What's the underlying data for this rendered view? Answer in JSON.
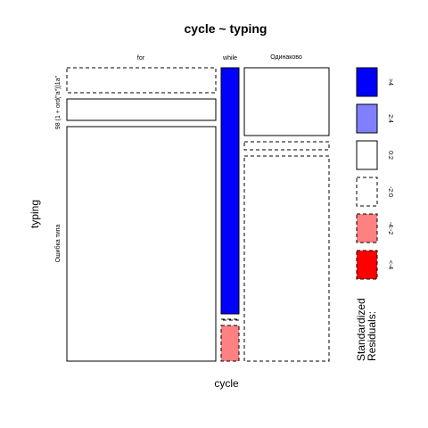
{
  "chart_data": {
    "type": "mosaic",
    "title": "cycle ~ typing",
    "xlabel": "cycle",
    "ylabel": "typing",
    "x_categories": [
      "for",
      "while",
      "Одинаково"
    ],
    "y_categories": [
      "98 (1 + ord(\"a\"))1a\"",
      "Ошибка типа"
    ],
    "cells": [
      {
        "x": "for",
        "residual_bin": "-2:0",
        "color": "#ffffff",
        "border": "dashed"
      },
      {
        "x": "for",
        "residual_bin": "0:2",
        "color": "#ffffff",
        "border": "solid"
      },
      {
        "x": "for",
        "y": "Ошибка типа",
        "residual_bin": "0:2",
        "color": "#ffffff",
        "border": "solid"
      },
      {
        "x": "while",
        "residual_bin": ">4",
        "color": "#0000ff",
        "border": "solid"
      },
      {
        "x": "while",
        "residual_bin": "-2:0",
        "color": "#ffffff",
        "border": "dashed"
      },
      {
        "x": "while",
        "residual_bin": "-4:-2",
        "color": "#ff8080",
        "border": "dashed"
      },
      {
        "x": "Одинаково",
        "residual_bin": "0:2",
        "color": "#ffffff",
        "border": "solid"
      },
      {
        "x": "Одинаково",
        "residual_bin": "-2:0",
        "color": "#ffffff",
        "border": "dashed"
      },
      {
        "x": "Одинаково",
        "residual_bin": "-2:0",
        "color": "#ffffff",
        "border": "dashed"
      }
    ],
    "legend": {
      "title_line1": "Standardized",
      "title_line2": "Residuals:",
      "placement": "right",
      "entries": [
        {
          "label": ">4",
          "color": "#0000ff",
          "border": "solid"
        },
        {
          "label": "2:4",
          "color": "#8080ff",
          "border": "solid"
        },
        {
          "label": "0:2",
          "color": "#ffffff",
          "border": "solid"
        },
        {
          "label": "-2:0",
          "color": "#ffffff",
          "border": "dashed"
        },
        {
          "label": "-4:-2",
          "color": "#ff8080",
          "border": "dashed"
        },
        {
          "label": "<-4",
          "color": "#ff0000",
          "border": "dashed"
        }
      ]
    }
  }
}
